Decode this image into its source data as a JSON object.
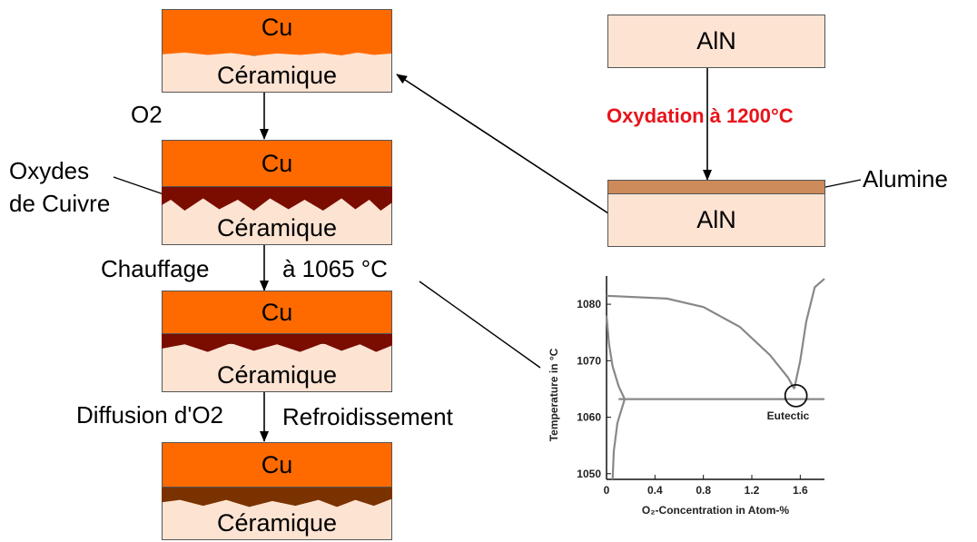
{
  "layers": {
    "cu": "Cu",
    "ceramic": "Céramique"
  },
  "steps": {
    "o2": "O2",
    "oxides_line1": "Oxydes",
    "oxides_line2": "de Cuivre",
    "heating": "Chauffage",
    "heating_temp": "à 1065 °C",
    "diffusion": "Diffusion d'O2",
    "cooling": "Refroidissement"
  },
  "aln": {
    "top_label": "AlN",
    "bottom_label": "AlN",
    "oxidation": "Oxydation à 1200°C",
    "alumina": "Alumine"
  },
  "colors": {
    "copper": "#ff6a00",
    "ceramic": "#fde3d2",
    "oxide": "#7a0c00",
    "diffused_oxide": "#7a3200",
    "alumina": "#cd8a5a",
    "oxidation_text": "#e8141a"
  },
  "chart_data": {
    "type": "line",
    "title": "",
    "xlabel": "O₂-Concentration in Atom-%",
    "ylabel": "Temperature in °C",
    "xlim": [
      0,
      1.8
    ],
    "ylim": [
      1049,
      1085
    ],
    "x_ticks": [
      "0",
      "0.4",
      "0.8",
      "1.2",
      "1.6"
    ],
    "x_tick_values": [
      0,
      0.4,
      0.8,
      1.2,
      1.6
    ],
    "y_ticks": [
      "1050",
      "1060",
      "1070",
      "1080"
    ],
    "y_tick_values": [
      1050,
      1060,
      1070,
      1080
    ],
    "annotation": "Eutectic",
    "eutectic_point": {
      "x": 1.55,
      "y": 1065
    },
    "series": [
      {
        "points": [
          [
            0,
            1081.5
          ],
          [
            0.5,
            1081
          ],
          [
            0.8,
            1079.5
          ],
          [
            1.1,
            1076
          ],
          [
            1.35,
            1071
          ],
          [
            1.5,
            1067
          ],
          [
            1.55,
            1065
          ]
        ]
      },
      {
        "points": [
          [
            0.1,
            1063.2
          ],
          [
            1.8,
            1063.2
          ]
        ]
      },
      {
        "points": [
          [
            0,
            1078
          ],
          [
            0.02,
            1073
          ],
          [
            0.05,
            1069
          ],
          [
            0.1,
            1065.5
          ],
          [
            0.15,
            1063.2
          ]
        ]
      },
      {
        "points": [
          [
            0.05,
            1049
          ],
          [
            0.06,
            1054
          ],
          [
            0.09,
            1059
          ],
          [
            0.15,
            1063.2
          ]
        ]
      },
      {
        "points": [
          [
            1.55,
            1065
          ],
          [
            1.6,
            1070
          ],
          [
            1.65,
            1077
          ],
          [
            1.72,
            1083
          ],
          [
            1.8,
            1084.5
          ]
        ]
      }
    ]
  }
}
